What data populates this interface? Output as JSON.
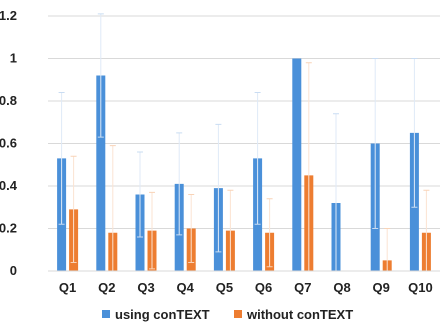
{
  "chart_data": {
    "type": "bar",
    "categories": [
      "Q1",
      "Q2",
      "Q3",
      "Q4",
      "Q5",
      "Q6",
      "Q7",
      "Q8",
      "Q9",
      "Q10"
    ],
    "series": [
      {
        "name": "using conTEXT",
        "color": "#4a90d9",
        "values": [
          0.53,
          0.92,
          0.36,
          0.41,
          0.39,
          0.53,
          1.0,
          0.32,
          0.6,
          0.65
        ],
        "error": [
          0.31,
          0.29,
          0.2,
          0.24,
          0.3,
          0.31,
          0.0,
          0.42,
          0.4,
          0.35
        ]
      },
      {
        "name": "without conTEXT",
        "color": "#ed7d31",
        "values": [
          0.29,
          0.18,
          0.19,
          0.2,
          0.19,
          0.18,
          0.45,
          0.0,
          0.05,
          0.18
        ],
        "error": [
          0.25,
          0.41,
          0.18,
          0.16,
          0.19,
          0.16,
          0.53,
          0.0,
          0.15,
          0.2
        ]
      }
    ],
    "yticks": [
      "0",
      "0.2",
      "0.4",
      "0.6",
      "0.8",
      "1",
      "1.2"
    ],
    "ylim": [
      0,
      1.2
    ],
    "grid": true,
    "legend_position": "bottom"
  }
}
